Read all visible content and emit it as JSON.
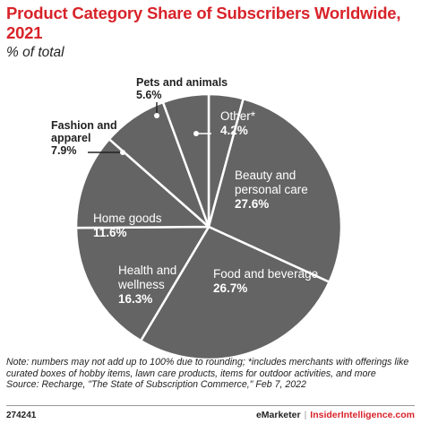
{
  "title": "Product Category Share of Subscribers Worldwide, 2021",
  "subtitle": "% of total",
  "note": "Note: numbers may not add up to 100% due to rounding; *includes merchants with offerings like curated boxes of hobby items, lawn care products, items for outdoor activities, and more",
  "source": "Source: Recharge, \"The State of Subscription Commerce,\" Feb 7, 2022",
  "footer": {
    "chart_id": "274241",
    "brand": "eMarketer",
    "site": "InsiderIntelligence.com"
  },
  "colors": {
    "slice": "#646464",
    "border": "#ffffff",
    "title": "#d8232a",
    "label_inside": "#ffffff",
    "label_outside": "#222222"
  },
  "chart_data": {
    "type": "pie",
    "title": "Product Category Share of Subscribers Worldwide, 2021",
    "unit": "% of total",
    "slices": [
      {
        "label": "Other*",
        "value": 4.2,
        "display": "4.2%"
      },
      {
        "label": "Beauty and personal care",
        "value": 27.6,
        "display": "27.6%"
      },
      {
        "label": "Food and beverage",
        "value": 26.7,
        "display": "26.7%"
      },
      {
        "label": "Health and wellness",
        "value": 16.3,
        "display": "16.3%"
      },
      {
        "label": "Home goods",
        "value": 11.6,
        "display": "11.6%"
      },
      {
        "label": "Fashion and apparel",
        "value": 7.9,
        "display": "7.9%"
      },
      {
        "label": "Pets and animals",
        "value": 5.6,
        "display": "5.6%"
      }
    ]
  }
}
